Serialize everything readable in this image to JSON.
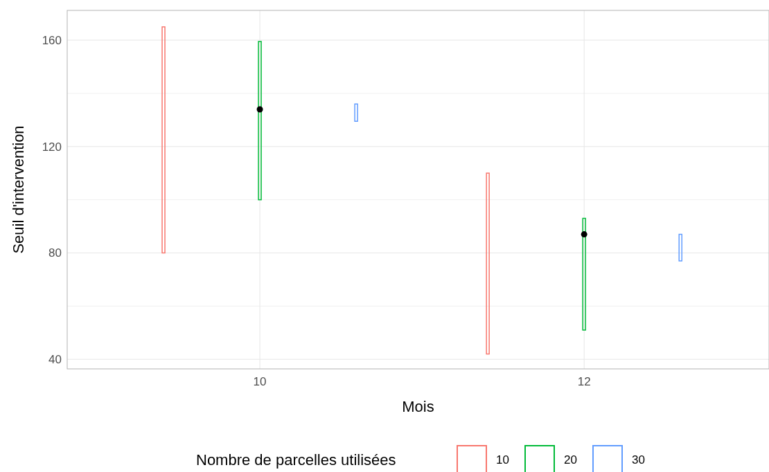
{
  "chart_data": {
    "type": "bar",
    "xlabel": "Mois",
    "ylabel": "Seuil d'intervention",
    "legend_title": "Nombre de parcelles utilisées",
    "categories": [
      "10",
      "12"
    ],
    "series": [
      {
        "name": "10",
        "color": "#f8766d",
        "base": [
          80,
          42
        ],
        "values": [
          85,
          68
        ]
      },
      {
        "name": "20",
        "color": "#00ba38",
        "base": [
          100,
          51
        ],
        "values": [
          59.5,
          42
        ]
      },
      {
        "name": "30",
        "color": "#619cff",
        "base": [
          129.5,
          77
        ],
        "values": [
          6.5,
          10
        ]
      },
      {
        "type": "scatter",
        "color": "#000000",
        "x": [
          "10",
          "12"
        ],
        "values": [
          134,
          87
        ]
      }
    ],
    "ylim": [
      36.4,
      171.2
    ],
    "yticks": [
      40,
      {
        "value": 60,
        "label": null
      },
      80,
      {
        "value": 100,
        "label": null
      },
      120,
      {
        "value": 140,
        "label": null
      },
      160
    ],
    "grid": true,
    "legend": "bottom"
  }
}
